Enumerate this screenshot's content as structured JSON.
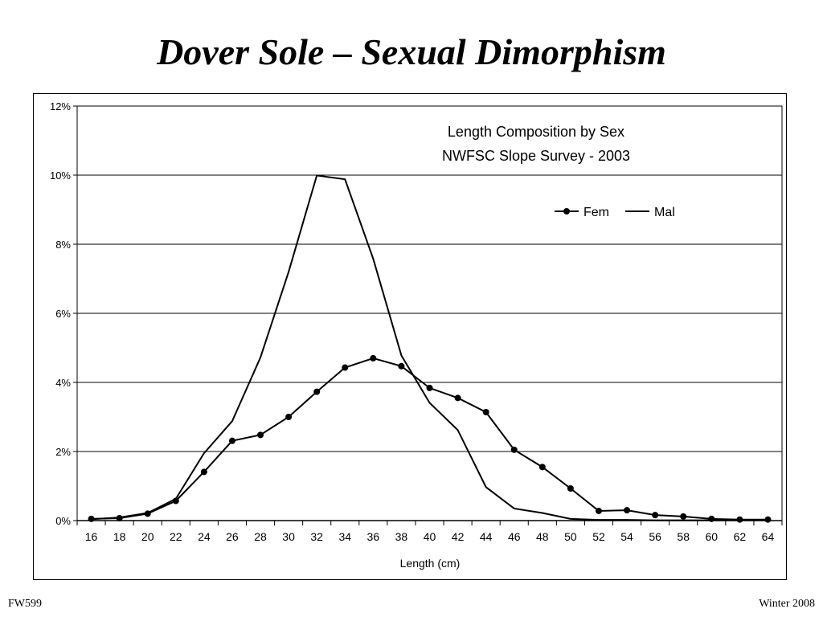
{
  "slide": {
    "title": "Dover Sole – Sexual Dimorphism",
    "footer_left": "FW599",
    "footer_right": "Winter 2008"
  },
  "chart_data": {
    "type": "line",
    "title": "Length Composition by Sex",
    "subtitle": "NWFSC Slope Survey - 2003",
    "xlabel": "Length (cm)",
    "ylabel": "",
    "categories": [
      "16",
      "18",
      "20",
      "22",
      "24",
      "26",
      "28",
      "30",
      "32",
      "34",
      "36",
      "38",
      "40",
      "42",
      "44",
      "46",
      "48",
      "50",
      "52",
      "54",
      "56",
      "58",
      "60",
      "62",
      "64"
    ],
    "ylim": [
      0,
      0.12
    ],
    "yticks": [
      0,
      0.02,
      0.04,
      0.06,
      0.08,
      0.1,
      0.12
    ],
    "ytick_labels": [
      "0%",
      "2%",
      "4%",
      "6%",
      "8%",
      "10%",
      "12%"
    ],
    "grid": true,
    "legend_position": "top-right",
    "series": [
      {
        "name": "Fem",
        "marker": "circle",
        "values": [
          0.0005,
          0.0007,
          0.002,
          0.0057,
          0.0141,
          0.0231,
          0.0248,
          0.03,
          0.0373,
          0.0443,
          0.047,
          0.0447,
          0.0384,
          0.0355,
          0.0314,
          0.0205,
          0.0155,
          0.0093,
          0.0028,
          0.003,
          0.0016,
          0.0012,
          0.0005,
          0.0003,
          0.0003
        ]
      },
      {
        "name": "Mal",
        "marker": "none",
        "values": [
          0.0004,
          0.0009,
          0.0022,
          0.0063,
          0.0195,
          0.0288,
          0.0472,
          0.072,
          0.0999,
          0.0988,
          0.0758,
          0.0478,
          0.0341,
          0.0262,
          0.0097,
          0.0035,
          0.0022,
          0.0005,
          0.0002,
          0.0002,
          0.0001,
          0.0001,
          0.0001,
          0.0001,
          0.0001
        ]
      }
    ]
  }
}
